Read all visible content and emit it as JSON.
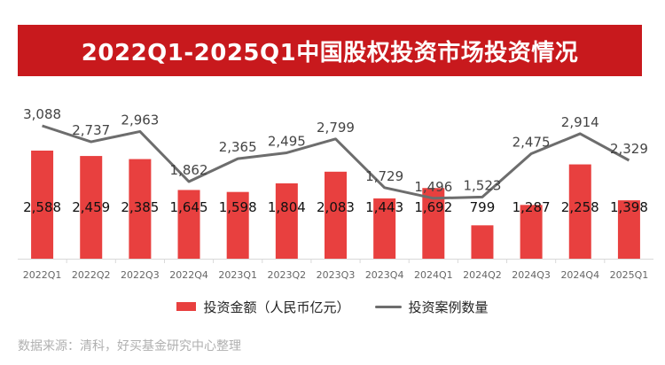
{
  "title": "2022Q1-2025Q1中国股权投资市场投资情况",
  "source": "数据来源：清科，好买基金研究中心整理",
  "colors": {
    "title_bg": "#c8191d",
    "bar": "#e8403f",
    "line": "#6d6d6d"
  },
  "chart_data": {
    "type": "bar",
    "categories": [
      "2022Q1",
      "2022Q2",
      "2022Q3",
      "2022Q4",
      "2023Q1",
      "2023Q2",
      "2023Q3",
      "2023Q4",
      "2024Q1",
      "2024Q2",
      "2024Q3",
      "2024Q4",
      "2025Q1"
    ],
    "series": [
      {
        "name": "投资金额（人民币亿元）",
        "kind": "bar",
        "values": [
          2588,
          2459,
          2385,
          1645,
          1598,
          1804,
          2083,
          1443,
          1692,
          799,
          1287,
          2258,
          1398
        ],
        "labels": [
          "2,588",
          "2,459",
          "2,385",
          "1,645",
          "1,598",
          "1,804",
          "2,083",
          "1,443",
          "1,692",
          "799",
          "1,287",
          "2,258",
          "1,398"
        ]
      },
      {
        "name": "投资案例数量",
        "kind": "line",
        "values": [
          3088,
          2737,
          2963,
          1862,
          2365,
          2495,
          2799,
          1729,
          1496,
          1523,
          2475,
          2914,
          2329
        ],
        "labels": [
          "3,088",
          "2,737",
          "2,963",
          "1,862",
          "2,365",
          "2,495",
          "2,799",
          "1,729",
          "1,496",
          "1,523",
          "2,475",
          "2,914",
          "2,329"
        ]
      }
    ],
    "legend_position": "bottom",
    "grid": false
  }
}
